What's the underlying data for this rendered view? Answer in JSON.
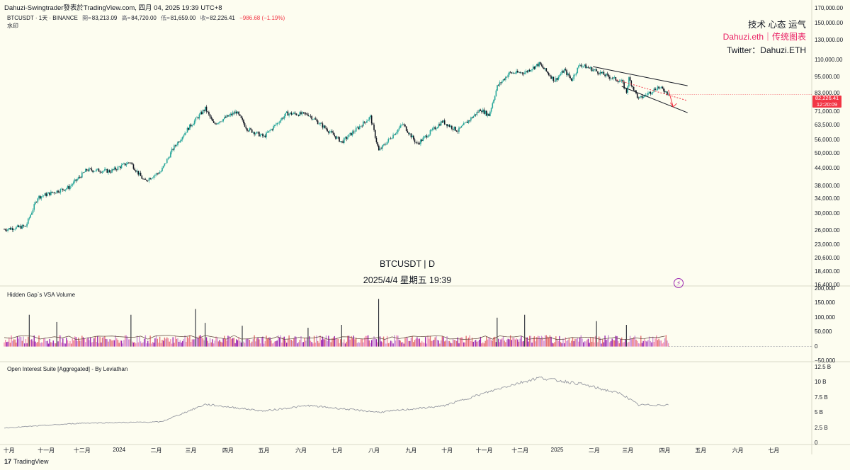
{
  "header": {
    "title": "Dahuzi-Swingtrader發表於TradingView.com, 四月 04, 2025 19:39 UTC+8"
  },
  "legend": {
    "symbol": "BTCUSDT · 1天 · BINANCE",
    "open_label": "開=",
    "open": "83,213.09",
    "high_label": "高=",
    "high": "84,720.00",
    "low_label": "低=",
    "low": "81,659.00",
    "close_label": "收=",
    "close": "82,226.41",
    "change": "−986.68 (−1.19%)",
    "watermark_label": "水印"
  },
  "annotations": {
    "line1": "技术 心态 运气",
    "line2": "Dahuzi.eth｜传统图表",
    "line3": "Twitter：Dahuzi.ETH"
  },
  "symbol_watermark": {
    "line1": "BTCUSDT | D",
    "line2": "2025/4/4 星期五 19:39"
  },
  "price_tag": {
    "price": "82,226.41",
    "countdown": "12:20:09"
  },
  "panes": {
    "volume_title": "Hidden Gap`s VSA Volume",
    "oi_title": "Open Interest Suite [Aggregated] - By Leviathan"
  },
  "footer": {
    "logo": "17",
    "brand": "TradingView"
  },
  "colors": {
    "background": "#fdfdf0",
    "up": "#26a69a",
    "down": "#131722",
    "channel": "#131722",
    "projection": "#f23645",
    "volume_pink": "#f48fb1",
    "volume_purple": "#9c27b0",
    "oi_line": "#9598a1"
  },
  "chart_data": [
    {
      "type": "candlestick",
      "title": "BTCUSDT · 1天 · BINANCE",
      "scale": "log",
      "ylim": [
        16400,
        170000
      ],
      "y_ticks": [
        "170,000.00",
        "150,000.00",
        "130,000.00",
        "110,000.00",
        "95,000.00",
        "83,000.00",
        "71,000.00",
        "63,500.00",
        "56,000.00",
        "50,000.00",
        "44,000.00",
        "38,000.00",
        "34,000.00",
        "30,000.00",
        "26,000.00",
        "23,000.00",
        "20,600.00",
        "18,400.00",
        "16,400.00"
      ],
      "x_ticks": [
        "十月",
        "十一月",
        "十二月",
        "2024",
        "二月",
        "三月",
        "四月",
        "五月",
        "六月",
        "七月",
        "八月",
        "九月",
        "十月",
        "十一月",
        "十二月",
        "2025",
        "二月",
        "三月",
        "四月",
        "五月",
        "六月",
        "七月"
      ],
      "x_range": [
        "2023-09-27",
        "2025-07-31"
      ],
      "last_date": "2025-04-04",
      "key_points": [
        {
          "date": "2023-09-27",
          "close": 26300
        },
        {
          "date": "2023-10-15",
          "close": 27000
        },
        {
          "date": "2023-10-25",
          "close": 34500
        },
        {
          "date": "2023-11-20",
          "close": 37500
        },
        {
          "date": "2023-12-05",
          "close": 43500
        },
        {
          "date": "2023-12-25",
          "close": 43000
        },
        {
          "date": "2024-01-10",
          "close": 46500
        },
        {
          "date": "2024-01-22",
          "close": 39500
        },
        {
          "date": "2024-02-05",
          "close": 43000
        },
        {
          "date": "2024-02-15",
          "close": 52000
        },
        {
          "date": "2024-02-28",
          "close": 62000
        },
        {
          "date": "2024-03-13",
          "close": 73000
        },
        {
          "date": "2024-03-20",
          "close": 64000
        },
        {
          "date": "2024-04-08",
          "close": 71000
        },
        {
          "date": "2024-04-17",
          "close": 61500
        },
        {
          "date": "2024-05-01",
          "close": 57500
        },
        {
          "date": "2024-05-20",
          "close": 70000
        },
        {
          "date": "2024-06-07",
          "close": 69500
        },
        {
          "date": "2024-06-24",
          "close": 60500
        },
        {
          "date": "2024-07-05",
          "close": 55000
        },
        {
          "date": "2024-07-29",
          "close": 68000
        },
        {
          "date": "2024-08-05",
          "close": 51000
        },
        {
          "date": "2024-08-25",
          "close": 64000
        },
        {
          "date": "2024-09-06",
          "close": 54000
        },
        {
          "date": "2024-09-27",
          "close": 65500
        },
        {
          "date": "2024-10-10",
          "close": 60500
        },
        {
          "date": "2024-10-29",
          "close": 72500
        },
        {
          "date": "2024-11-05",
          "close": 69000
        },
        {
          "date": "2024-11-12",
          "close": 88000
        },
        {
          "date": "2024-11-22",
          "close": 98500
        },
        {
          "date": "2024-12-05",
          "close": 99000
        },
        {
          "date": "2024-12-17",
          "close": 106500
        },
        {
          "date": "2024-12-30",
          "close": 92500
        },
        {
          "date": "2025-01-07",
          "close": 101000
        },
        {
          "date": "2025-01-13",
          "close": 93000
        },
        {
          "date": "2025-01-20",
          "close": 106000
        },
        {
          "date": "2025-02-01",
          "close": 101000
        },
        {
          "date": "2025-02-12",
          "close": 96000
        },
        {
          "date": "2025-02-24",
          "close": 91500
        },
        {
          "date": "2025-02-28",
          "close": 84000
        },
        {
          "date": "2025-03-02",
          "close": 94000
        },
        {
          "date": "2025-03-10",
          "close": 79000
        },
        {
          "date": "2025-03-20",
          "close": 84000
        },
        {
          "date": "2025-03-26",
          "close": 87500
        },
        {
          "date": "2025-04-01",
          "close": 85000
        },
        {
          "date": "2025-04-04",
          "close": 82226.41
        }
      ],
      "overlays": {
        "channel_upper": [
          {
            "date": "2025-01-31",
            "price": 104000
          },
          {
            "date": "2025-04-20",
            "price": 88500
          }
        ],
        "channel_lower": [
          {
            "date": "2025-02-24",
            "price": 88000
          },
          {
            "date": "2025-04-20",
            "price": 70500
          }
        ],
        "projection_dotted": [
          {
            "date": "2025-02-20",
            "price": 93000
          },
          {
            "date": "2025-04-20",
            "price": 78000
          }
        ],
        "projection_arrow": [
          {
            "date": "2025-04-04",
            "price": 85500
          },
          {
            "date": "2025-04-08",
            "price": 74000
          }
        ]
      }
    },
    {
      "type": "bar",
      "title": "Hidden Gap`s VSA Volume",
      "ylim": [
        -50000,
        200000
      ],
      "y_ticks": [
        "200,000",
        "150,000",
        "100,000",
        "50,000",
        "0",
        "−50,000"
      ],
      "typical_value": 20000,
      "spikes": [
        {
          "date": "2023-10-18",
          "value": 110000
        },
        {
          "date": "2023-11-10",
          "value": 85000
        },
        {
          "date": "2024-01-11",
          "value": 110000
        },
        {
          "date": "2024-03-05",
          "value": 130000
        },
        {
          "date": "2024-03-13",
          "value": 82000
        },
        {
          "date": "2024-04-13",
          "value": 72000
        },
        {
          "date": "2024-06-07",
          "value": 65000
        },
        {
          "date": "2024-07-05",
          "value": 75000
        },
        {
          "date": "2024-08-05",
          "value": 165000
        },
        {
          "date": "2024-11-12",
          "value": 100000
        },
        {
          "date": "2024-12-05",
          "value": 110000
        },
        {
          "date": "2025-02-03",
          "value": 88000
        },
        {
          "date": "2025-02-28",
          "value": 75000
        }
      ],
      "moving_average": 30000
    },
    {
      "type": "line",
      "title": "Open Interest Suite [Aggregated] - By Leviathan",
      "ylim": [
        0,
        12500000000
      ],
      "y_ticks": [
        "12.5 B",
        "10 B",
        "7.5 B",
        "5 B",
        "2.5 B",
        "0"
      ],
      "key_points": [
        {
          "date": "2023-09-27",
          "value": 2500000000
        },
        {
          "date": "2023-12-01",
          "value": 3300000000
        },
        {
          "date": "2024-02-05",
          "value": 3500000000
        },
        {
          "date": "2024-03-13",
          "value": 6400000000
        },
        {
          "date": "2024-05-01",
          "value": 5300000000
        },
        {
          "date": "2024-06-07",
          "value": 6200000000
        },
        {
          "date": "2024-08-05",
          "value": 5100000000
        },
        {
          "date": "2024-09-27",
          "value": 6100000000
        },
        {
          "date": "2024-11-22",
          "value": 9500000000
        },
        {
          "date": "2024-12-17",
          "value": 10800000000
        },
        {
          "date": "2025-01-20",
          "value": 9800000000
        },
        {
          "date": "2025-02-24",
          "value": 8100000000
        },
        {
          "date": "2025-03-10",
          "value": 6300000000
        },
        {
          "date": "2025-04-04",
          "value": 6300000000
        }
      ]
    }
  ]
}
